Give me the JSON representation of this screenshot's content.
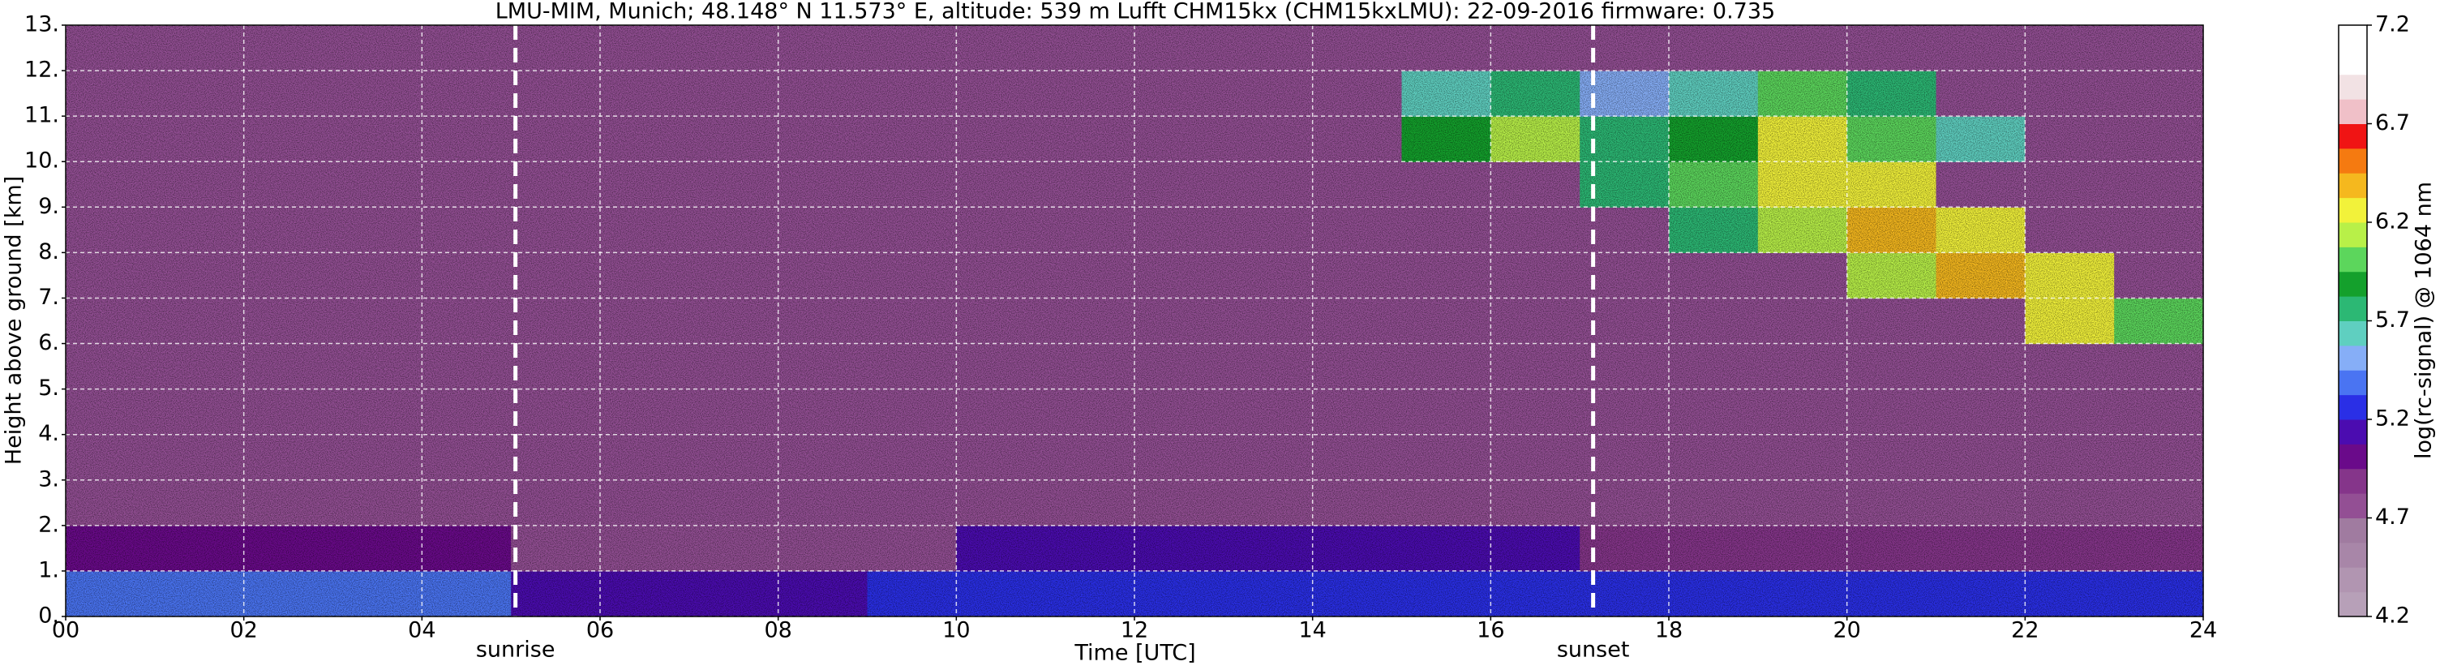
{
  "chart_data": {
    "type": "heatmap",
    "title": "LMU-MIM, Munich; 48.148° N 11.573° E, altitude: 539 m    Lufft CHM15kx (CHM15kxLMU): 22-09-2016    firmware: 0.735",
    "x_label": "Time [UTC]",
    "y_label": "Height above ground [km]",
    "colorbar_label": "log(rc-signal) @ 1064 nm",
    "x": [
      0,
      1,
      2,
      3,
      4,
      5,
      6,
      7,
      8,
      9,
      10,
      11,
      12,
      13,
      14,
      15,
      16,
      17,
      18,
      19,
      20,
      21,
      22,
      23,
      24
    ],
    "y": [
      0,
      1,
      2,
      3,
      4,
      5,
      6,
      7,
      8,
      9,
      10,
      11,
      12,
      13
    ],
    "z": [
      [
        5.4,
        5.4,
        5.4,
        5.4,
        5.4,
        5.1,
        5.1,
        5.1,
        5.1,
        5.2,
        5.2,
        5.2,
        5.2,
        5.3,
        5.3,
        5.3,
        5.3,
        5.3,
        5.3,
        5.3,
        5.3,
        5.3,
        5.3,
        5.3
      ],
      [
        5.0,
        5.0,
        5.0,
        5.0,
        5.0,
        4.8,
        4.8,
        4.8,
        4.8,
        4.8,
        5.1,
        5.1,
        5.1,
        5.1,
        5.1,
        5.1,
        5.1,
        4.9,
        4.9,
        4.9,
        4.9,
        4.9,
        4.9,
        4.9
      ],
      [
        4.8,
        4.8,
        4.8,
        4.8,
        4.8,
        4.8,
        4.8,
        4.8,
        4.8,
        4.8,
        4.8,
        4.8,
        4.8,
        4.8,
        4.8,
        4.8,
        4.8,
        4.8,
        4.8,
        4.8,
        4.8,
        4.8,
        4.8,
        4.8
      ],
      [
        4.8,
        4.8,
        4.8,
        4.8,
        4.8,
        4.8,
        4.8,
        4.8,
        4.8,
        4.8,
        4.8,
        4.8,
        4.8,
        4.8,
        4.8,
        4.8,
        4.8,
        4.8,
        4.8,
        4.8,
        4.8,
        4.8,
        4.8,
        4.8
      ],
      [
        4.8,
        4.8,
        4.8,
        4.8,
        4.8,
        4.8,
        4.8,
        4.8,
        4.8,
        4.8,
        4.8,
        4.8,
        4.8,
        4.8,
        4.8,
        4.8,
        4.8,
        4.8,
        4.8,
        4.8,
        4.8,
        4.8,
        4.8,
        4.8
      ],
      [
        4.8,
        4.8,
        4.8,
        4.8,
        4.8,
        4.8,
        4.8,
        4.8,
        4.8,
        4.8,
        4.8,
        4.8,
        4.8,
        4.8,
        4.8,
        4.8,
        4.8,
        4.8,
        4.8,
        4.8,
        4.8,
        4.8,
        4.8,
        4.8
      ],
      [
        4.8,
        4.8,
        4.8,
        4.8,
        4.8,
        4.8,
        4.8,
        4.8,
        4.8,
        4.8,
        4.8,
        4.8,
        4.8,
        4.8,
        4.8,
        4.8,
        4.8,
        4.8,
        4.8,
        4.8,
        4.8,
        4.8,
        6.3,
        6.0
      ],
      [
        4.8,
        4.8,
        4.8,
        4.8,
        4.8,
        4.8,
        4.8,
        4.8,
        4.8,
        4.8,
        4.8,
        4.8,
        4.8,
        4.8,
        4.8,
        4.8,
        4.8,
        4.8,
        4.8,
        4.8,
        6.1,
        6.4,
        6.2,
        4.8
      ],
      [
        4.8,
        4.8,
        4.8,
        4.8,
        4.8,
        4.8,
        4.8,
        4.8,
        4.8,
        4.8,
        4.8,
        4.8,
        4.8,
        4.8,
        4.8,
        4.8,
        4.8,
        4.8,
        5.8,
        6.1,
        6.4,
        6.2,
        4.8,
        4.8
      ],
      [
        4.8,
        4.8,
        4.8,
        4.8,
        4.8,
        4.8,
        4.8,
        4.8,
        4.8,
        4.8,
        4.8,
        4.8,
        4.8,
        4.8,
        4.8,
        4.8,
        4.8,
        5.7,
        6.0,
        6.3,
        6.2,
        4.8,
        4.8,
        4.8
      ],
      [
        4.8,
        4.8,
        4.8,
        4.8,
        4.8,
        4.8,
        4.8,
        4.8,
        4.8,
        4.8,
        4.8,
        4.8,
        4.8,
        4.8,
        4.8,
        5.9,
        6.1,
        5.8,
        5.9,
        6.2,
        6.0,
        5.6,
        4.8,
        4.8
      ],
      [
        4.8,
        4.8,
        4.8,
        4.8,
        4.8,
        4.8,
        4.8,
        4.8,
        4.8,
        4.8,
        4.8,
        4.8,
        4.8,
        4.8,
        4.8,
        5.6,
        5.8,
        5.5,
        5.6,
        6.0,
        5.7,
        4.8,
        4.8,
        4.8
      ],
      [
        4.8,
        4.8,
        4.8,
        4.8,
        4.8,
        4.8,
        4.8,
        4.8,
        4.8,
        4.8,
        4.8,
        4.8,
        4.8,
        4.8,
        4.8,
        4.8,
        4.8,
        4.8,
        4.8,
        4.8,
        4.8,
        4.8,
        4.8,
        4.8
      ]
    ],
    "xlim": [
      0,
      24
    ],
    "xticks": [
      {
        "value": 0,
        "label": "00"
      },
      {
        "value": 2,
        "label": "02"
      },
      {
        "value": 4,
        "label": "04"
      },
      {
        "value": 6,
        "label": "06"
      },
      {
        "value": 8,
        "label": "08"
      },
      10,
      12,
      14,
      16,
      18,
      20,
      22,
      24
    ],
    "ylim": [
      0,
      13
    ],
    "yticks": [
      {
        "value": 0,
        "label": "0."
      },
      {
        "value": 1,
        "label": "1."
      },
      {
        "value": 2,
        "label": "2."
      },
      {
        "value": 3,
        "label": "3."
      },
      {
        "value": 4,
        "label": "4."
      },
      {
        "value": 5,
        "label": "5."
      },
      {
        "value": 6,
        "label": "6."
      },
      {
        "value": 7,
        "label": "7."
      },
      {
        "value": 8,
        "label": "8."
      },
      {
        "value": 9,
        "label": "9."
      },
      {
        "value": 10,
        "label": "10."
      },
      {
        "value": 11,
        "label": "11."
      },
      {
        "value": 12,
        "label": "12."
      },
      {
        "value": 13,
        "label": "13."
      }
    ],
    "clim": [
      4.2,
      7.2
    ],
    "cticks": [
      4.2,
      4.7,
      5.2,
      5.7,
      6.2,
      6.7,
      7.2
    ],
    "colormap": [
      "#b7a0b8",
      "#b195b1",
      "#a886a8",
      "#a07ba0",
      "#934f94",
      "#85358a",
      "#6a0a8a",
      "#4b0cb0",
      "#2a2fe6",
      "#4a74f2",
      "#86aef7",
      "#5fcfc0",
      "#2cb874",
      "#14a02c",
      "#5cd65c",
      "#b8f048",
      "#f2f23a",
      "#f5b81e",
      "#f57a10",
      "#f01414",
      "#f0c0c8",
      "#f2e2e4",
      "#ffffff",
      "#ffffff"
    ],
    "grid": true,
    "annotations": [
      {
        "text": "sunrise",
        "x": 5.05
      },
      {
        "text": "sunset",
        "x": 17.15
      }
    ]
  }
}
